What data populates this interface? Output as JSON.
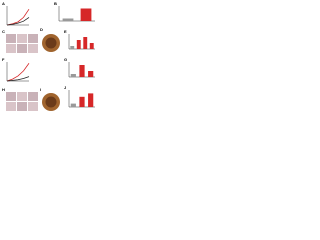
{
  "panels": [
    {
      "label": "A",
      "type": "line",
      "ylim": [
        0,
        30
      ],
      "series": [
        {
          "color": "#d62728",
          "values": [
            0,
            2,
            5,
            12,
            25
          ]
        },
        {
          "color": "#222222",
          "values": [
            0,
            1,
            3,
            6,
            12
          ]
        }
      ]
    },
    {
      "label": "B",
      "type": "bar",
      "ylim": [
        0,
        6
      ],
      "values": [
        1,
        5
      ],
      "colors": [
        "#999999",
        "#d62728"
      ]
    },
    {
      "label": "C",
      "type": "image"
    },
    {
      "label": "D",
      "type": "stain"
    },
    {
      "label": "E",
      "type": "bar",
      "ylim": [
        0,
        5
      ],
      "values": [
        1,
        3,
        4,
        2
      ],
      "colors": [
        "#999999",
        "#d62728",
        "#d62728",
        "#d62728"
      ]
    },
    {
      "label": "F",
      "type": "line",
      "ylim": [
        0,
        30
      ],
      "series": [
        {
          "color": "#d62728",
          "values": [
            0,
            3,
            8,
            16,
            28
          ]
        },
        {
          "color": "#222222",
          "values": [
            0,
            1,
            2,
            4,
            7
          ]
        }
      ]
    },
    {
      "label": "G",
      "type": "bar",
      "ylim": [
        0,
        5
      ],
      "values": [
        1,
        4,
        2
      ],
      "colors": [
        "#999999",
        "#d62728",
        "#d62728"
      ]
    },
    {
      "label": "H",
      "type": "image"
    },
    {
      "label": "I",
      "type": "stain"
    },
    {
      "label": "J",
      "type": "bar",
      "ylim": [
        0,
        5
      ],
      "values": [
        1,
        3,
        4
      ],
      "colors": [
        "#999999",
        "#d62728",
        "#d62728"
      ]
    }
  ]
}
